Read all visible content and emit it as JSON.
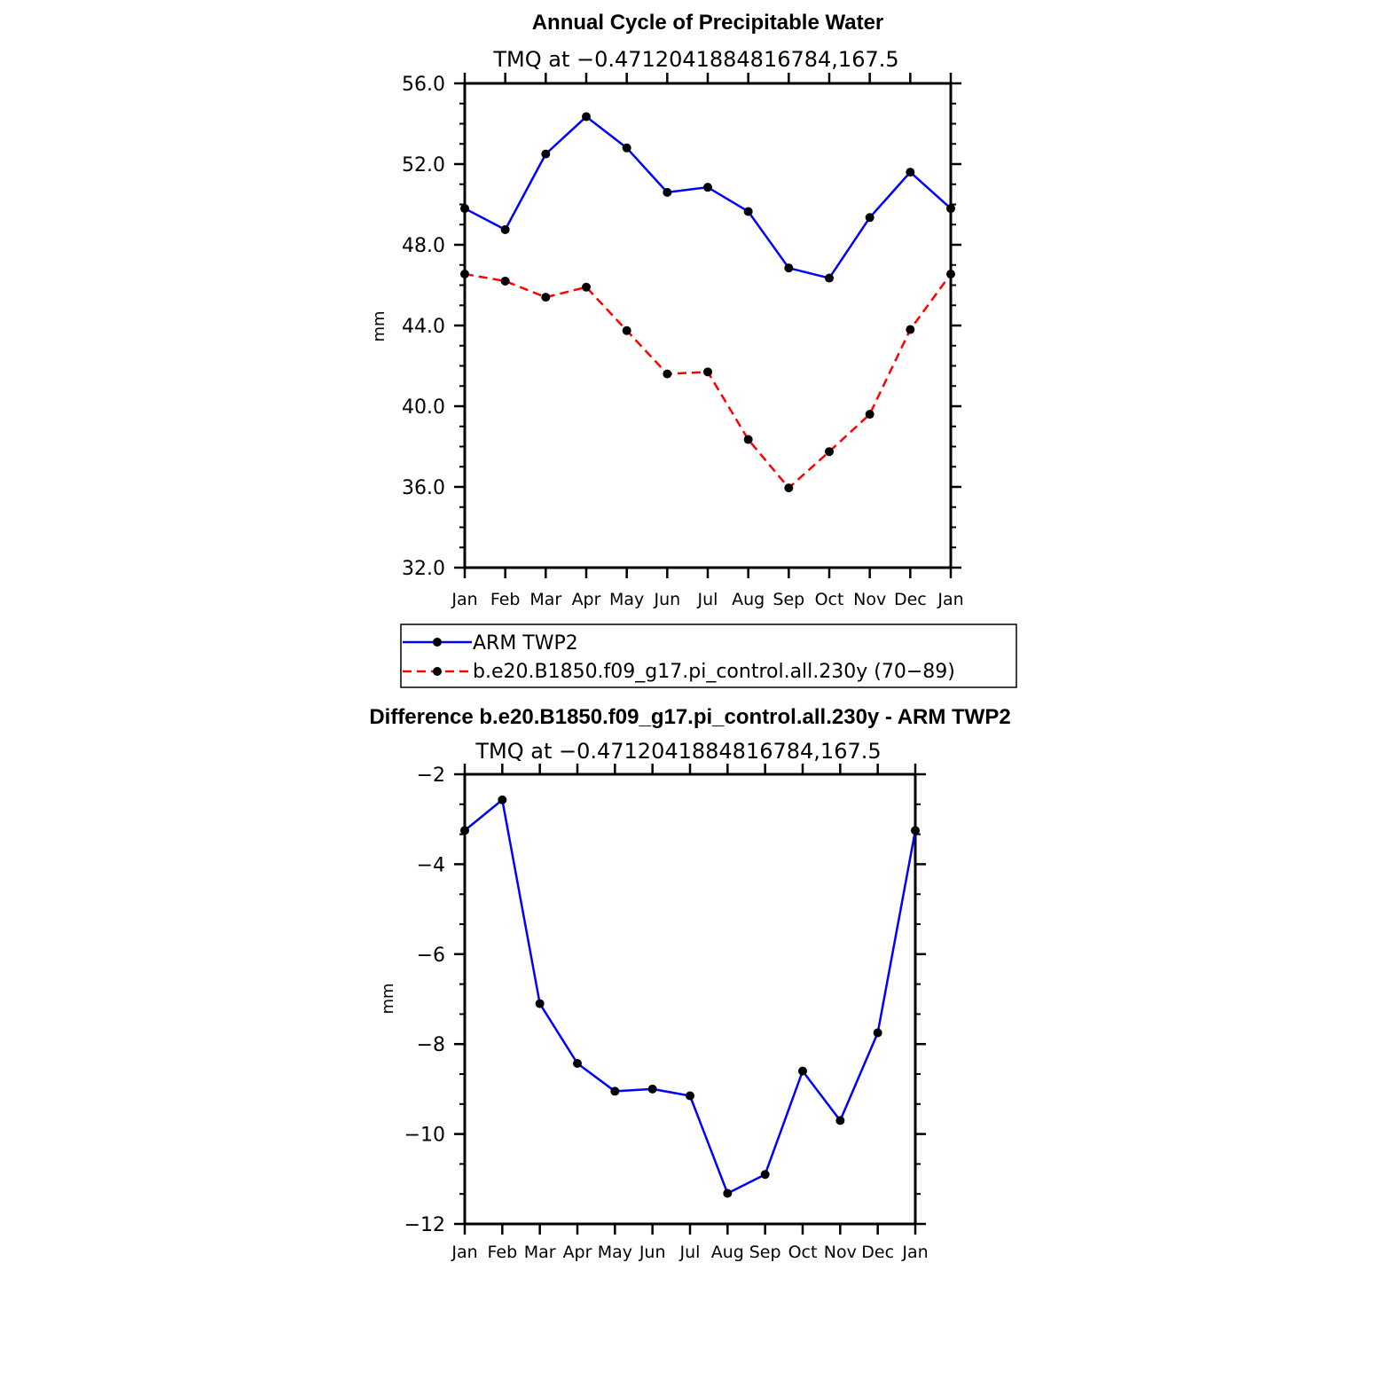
{
  "chart_data": [
    {
      "type": "line",
      "title": "Annual Cycle of Precipitable Water",
      "subtitle": "TMQ at −0.4712041884816784,167.5",
      "ylabel": "mm",
      "ylim": [
        32,
        56
      ],
      "yticks": [
        32,
        36,
        40,
        44,
        48,
        52,
        56
      ],
      "ytick_labels": [
        "32.0",
        "36.0",
        "40.0",
        "44.0",
        "48.0",
        "52.0",
        "56.0"
      ],
      "categories": [
        "Jan",
        "Feb",
        "Mar",
        "Apr",
        "May",
        "Jun",
        "Jul",
        "Aug",
        "Sep",
        "Oct",
        "Nov",
        "Dec",
        "Jan"
      ],
      "series": [
        {
          "name": "ARM TWP2",
          "color": "#0000ff",
          "style": "solid",
          "values": [
            49.8,
            48.75,
            52.5,
            54.35,
            52.8,
            50.6,
            50.85,
            49.65,
            46.85,
            46.35,
            49.35,
            51.6,
            49.8
          ]
        },
        {
          "name": "b.e20.B1850.f09_g17.pi_control.all.230y (70−89)",
          "color": "#ff0000",
          "style": "dashed",
          "values": [
            46.55,
            46.2,
            45.4,
            45.9,
            43.75,
            41.6,
            41.7,
            38.35,
            35.95,
            37.75,
            39.6,
            43.8,
            46.55
          ]
        }
      ],
      "legend": "bottom",
      "grid": false
    },
    {
      "type": "line",
      "title": "Difference b.e20.B1850.f09_g17.pi_control.all.230y - ARM TWP2",
      "subtitle": "TMQ at −0.4712041884816784,167.5",
      "ylabel": "mm",
      "ylim": [
        -12,
        -2
      ],
      "yticks": [
        -12,
        -10,
        -8,
        -6,
        -4,
        -2
      ],
      "ytick_labels": [
        "−12",
        "−10",
        "−8",
        "−6",
        "−4",
        "−2"
      ],
      "categories": [
        "Jan",
        "Feb",
        "Mar",
        "Apr",
        "May",
        "Jun",
        "Jul",
        "Aug",
        "Sep",
        "Oct",
        "Nov",
        "Dec",
        "Jan"
      ],
      "series": [
        {
          "color": "#0000ff",
          "style": "solid",
          "values": [
            -3.25,
            -2.57,
            -7.1,
            -8.43,
            -9.05,
            -9.0,
            -9.15,
            -11.32,
            -10.9,
            -8.6,
            -9.7,
            -7.75,
            -3.25
          ]
        }
      ],
      "grid": false
    }
  ]
}
